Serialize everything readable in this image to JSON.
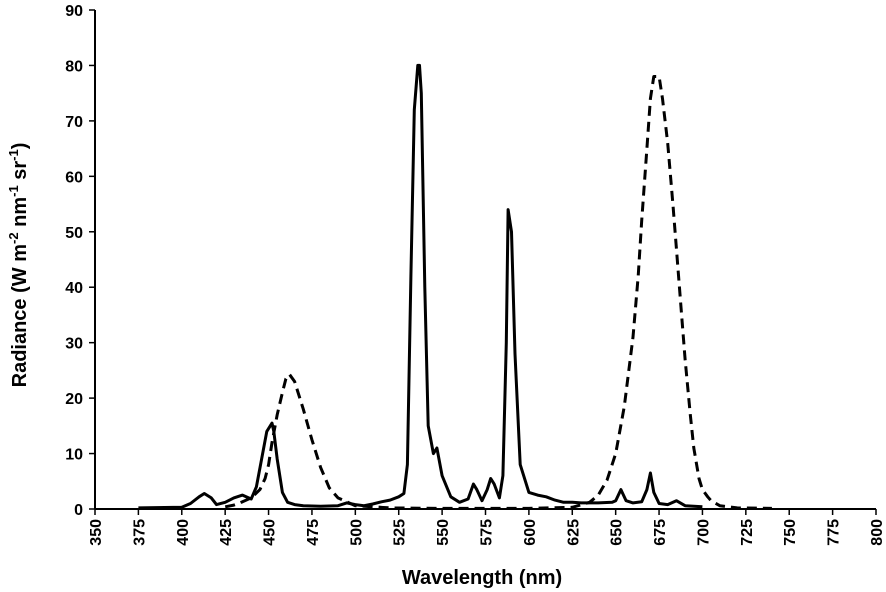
{
  "chart_data": {
    "type": "line",
    "title": "",
    "xlabel": "Wavelength (nm)",
    "ylabel": {
      "base": "Radiance  (W m",
      "exp1": "-2",
      "mid1": " nm",
      "exp2": "-1",
      "mid2": " sr",
      "exp3": "-1",
      "end": ")"
    },
    "xlim": [
      350,
      800
    ],
    "ylim": [
      0,
      90
    ],
    "xticks": [
      "350",
      "375",
      "400",
      "425",
      "450",
      "475",
      "500",
      "525",
      "550",
      "575",
      "600",
      "625",
      "650",
      "675",
      "700",
      "725",
      "750",
      "775",
      "800"
    ],
    "yticks": [
      "0",
      "10",
      "20",
      "30",
      "40",
      "50",
      "60",
      "70",
      "80",
      "90"
    ],
    "grid": false,
    "legend": "none",
    "series": [
      {
        "style": "solid",
        "color": "#000000",
        "x": [
          375,
          400,
          405,
          410,
          413,
          417,
          420,
          425,
          430,
          435,
          440,
          443,
          446,
          449,
          452,
          453,
          455,
          458,
          461,
          465,
          470,
          480,
          490,
          495,
          500,
          505,
          510,
          515,
          520,
          525,
          528,
          530,
          532,
          534,
          536,
          537,
          538,
          540,
          542,
          545,
          547,
          550,
          555,
          560,
          565,
          568,
          570,
          573,
          576,
          578,
          580,
          583,
          585,
          587,
          588,
          590,
          592,
          595,
          600,
          605,
          610,
          615,
          620,
          625,
          630,
          640,
          648,
          650,
          653,
          656,
          660,
          665,
          668,
          670,
          672,
          675,
          680,
          685,
          690,
          700
        ],
        "y": [
          0.2,
          0.3,
          1.0,
          2.2,
          2.8,
          2.0,
          0.8,
          1.2,
          2.0,
          2.5,
          1.8,
          4,
          9,
          14,
          15.5,
          14,
          9,
          3,
          1.2,
          0.8,
          0.6,
          0.5,
          0.6,
          1.1,
          0.8,
          0.6,
          0.9,
          1.3,
          1.6,
          2.2,
          2.8,
          8,
          42,
          72,
          80,
          80,
          75,
          40,
          15,
          10,
          11,
          6,
          2.2,
          1.2,
          1.8,
          4.5,
          3.5,
          1.5,
          3.5,
          5.5,
          4.5,
          2,
          6,
          30,
          54,
          50,
          28,
          8,
          3,
          2.5,
          2.2,
          1.6,
          1.2,
          1.2,
          1.1,
          1.1,
          1.2,
          1.5,
          3.5,
          1.5,
          1.1,
          1.3,
          3.5,
          6.5,
          3,
          1.0,
          0.8,
          1.5,
          0.6,
          0.4
        ]
      },
      {
        "style": "dashed",
        "color": "#000000",
        "x": [
          425,
          430,
          435,
          440,
          445,
          448,
          450,
          452,
          455,
          458,
          460,
          462,
          465,
          468,
          470,
          475,
          480,
          485,
          490,
          500,
          520,
          550,
          600,
          625,
          635,
          640,
          645,
          650,
          655,
          660,
          663,
          665,
          668,
          670,
          672,
          675,
          677,
          680,
          683,
          685,
          688,
          690,
          693,
          695,
          698,
          700,
          703,
          705,
          710,
          720,
          740
        ],
        "y": [
          0.4,
          0.7,
          1.3,
          2.0,
          3.5,
          5.5,
          8,
          12,
          17,
          21,
          23.5,
          24.3,
          23,
          20,
          18,
          12.5,
          7.5,
          3.8,
          2,
          0.6,
          0.2,
          0.1,
          0.1,
          0.3,
          1.2,
          2.5,
          5.2,
          10,
          18.5,
          31,
          42,
          52,
          65,
          74,
          78,
          78,
          74,
          66,
          55,
          47,
          35,
          27,
          17,
          11,
          5.5,
          3.5,
          2.2,
          1.5,
          0.6,
          0.2,
          0.1
        ]
      }
    ]
  }
}
